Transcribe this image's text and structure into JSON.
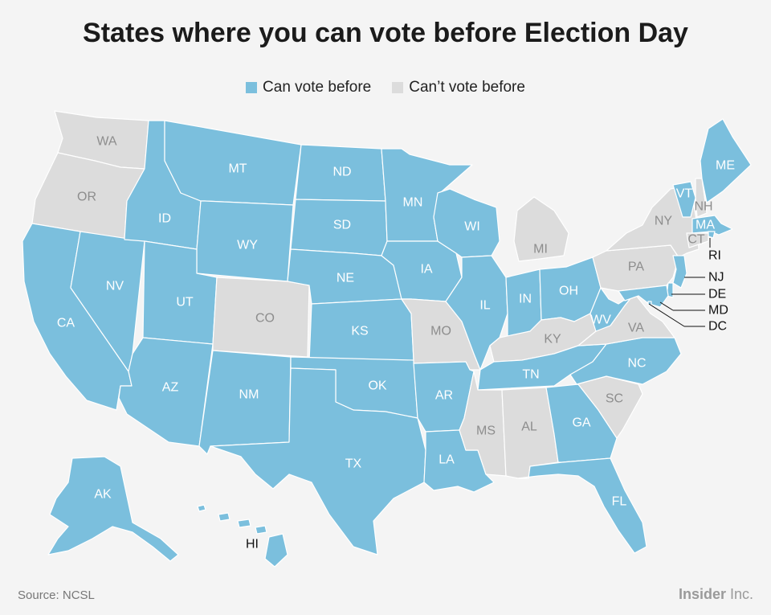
{
  "title": "States where you can vote before Election Day",
  "legend": [
    {
      "label": "Can vote before",
      "color": "#7bbfdd"
    },
    {
      "label": "Can’t vote before",
      "color": "#dcdcdc"
    }
  ],
  "colors": {
    "can": "#7bbfdd",
    "cannot": "#dcdcdc",
    "water": "#f4f4f4"
  },
  "source": "Source: NCSL",
  "brand": {
    "name": "Insider",
    "suffix": " Inc."
  },
  "states": [
    {
      "abbr": "WA",
      "can_vote_early": false
    },
    {
      "abbr": "OR",
      "can_vote_early": false
    },
    {
      "abbr": "CA",
      "can_vote_early": true
    },
    {
      "abbr": "NV",
      "can_vote_early": true
    },
    {
      "abbr": "ID",
      "can_vote_early": true
    },
    {
      "abbr": "MT",
      "can_vote_early": true
    },
    {
      "abbr": "WY",
      "can_vote_early": true
    },
    {
      "abbr": "UT",
      "can_vote_early": true
    },
    {
      "abbr": "AZ",
      "can_vote_early": true
    },
    {
      "abbr": "CO",
      "can_vote_early": false
    },
    {
      "abbr": "NM",
      "can_vote_early": true
    },
    {
      "abbr": "ND",
      "can_vote_early": true
    },
    {
      "abbr": "SD",
      "can_vote_early": true
    },
    {
      "abbr": "NE",
      "can_vote_early": true
    },
    {
      "abbr": "KS",
      "can_vote_early": true
    },
    {
      "abbr": "OK",
      "can_vote_early": true
    },
    {
      "abbr": "TX",
      "can_vote_early": true
    },
    {
      "abbr": "MN",
      "can_vote_early": true
    },
    {
      "abbr": "IA",
      "can_vote_early": true
    },
    {
      "abbr": "MO",
      "can_vote_early": false
    },
    {
      "abbr": "AR",
      "can_vote_early": true
    },
    {
      "abbr": "LA",
      "can_vote_early": true
    },
    {
      "abbr": "WI",
      "can_vote_early": true
    },
    {
      "abbr": "IL",
      "can_vote_early": true
    },
    {
      "abbr": "MI",
      "can_vote_early": false
    },
    {
      "abbr": "IN",
      "can_vote_early": true
    },
    {
      "abbr": "OH",
      "can_vote_early": true
    },
    {
      "abbr": "KY",
      "can_vote_early": false
    },
    {
      "abbr": "TN",
      "can_vote_early": true
    },
    {
      "abbr": "MS",
      "can_vote_early": false
    },
    {
      "abbr": "AL",
      "can_vote_early": false
    },
    {
      "abbr": "GA",
      "can_vote_early": true
    },
    {
      "abbr": "FL",
      "can_vote_early": true
    },
    {
      "abbr": "SC",
      "can_vote_early": false
    },
    {
      "abbr": "NC",
      "can_vote_early": true
    },
    {
      "abbr": "VA",
      "can_vote_early": false
    },
    {
      "abbr": "WV",
      "can_vote_early": true
    },
    {
      "abbr": "PA",
      "can_vote_early": false
    },
    {
      "abbr": "NY",
      "can_vote_early": false
    },
    {
      "abbr": "VT",
      "can_vote_early": true
    },
    {
      "abbr": "NH",
      "can_vote_early": false
    },
    {
      "abbr": "ME",
      "can_vote_early": true
    },
    {
      "abbr": "MA",
      "can_vote_early": true
    },
    {
      "abbr": "RI",
      "can_vote_early": true
    },
    {
      "abbr": "CT",
      "can_vote_early": false
    },
    {
      "abbr": "NJ",
      "can_vote_early": true
    },
    {
      "abbr": "DE",
      "can_vote_early": true
    },
    {
      "abbr": "MD",
      "can_vote_early": true
    },
    {
      "abbr": "DC",
      "can_vote_early": true
    },
    {
      "abbr": "AK",
      "can_vote_early": true
    },
    {
      "abbr": "HI",
      "can_vote_early": true
    }
  ]
}
